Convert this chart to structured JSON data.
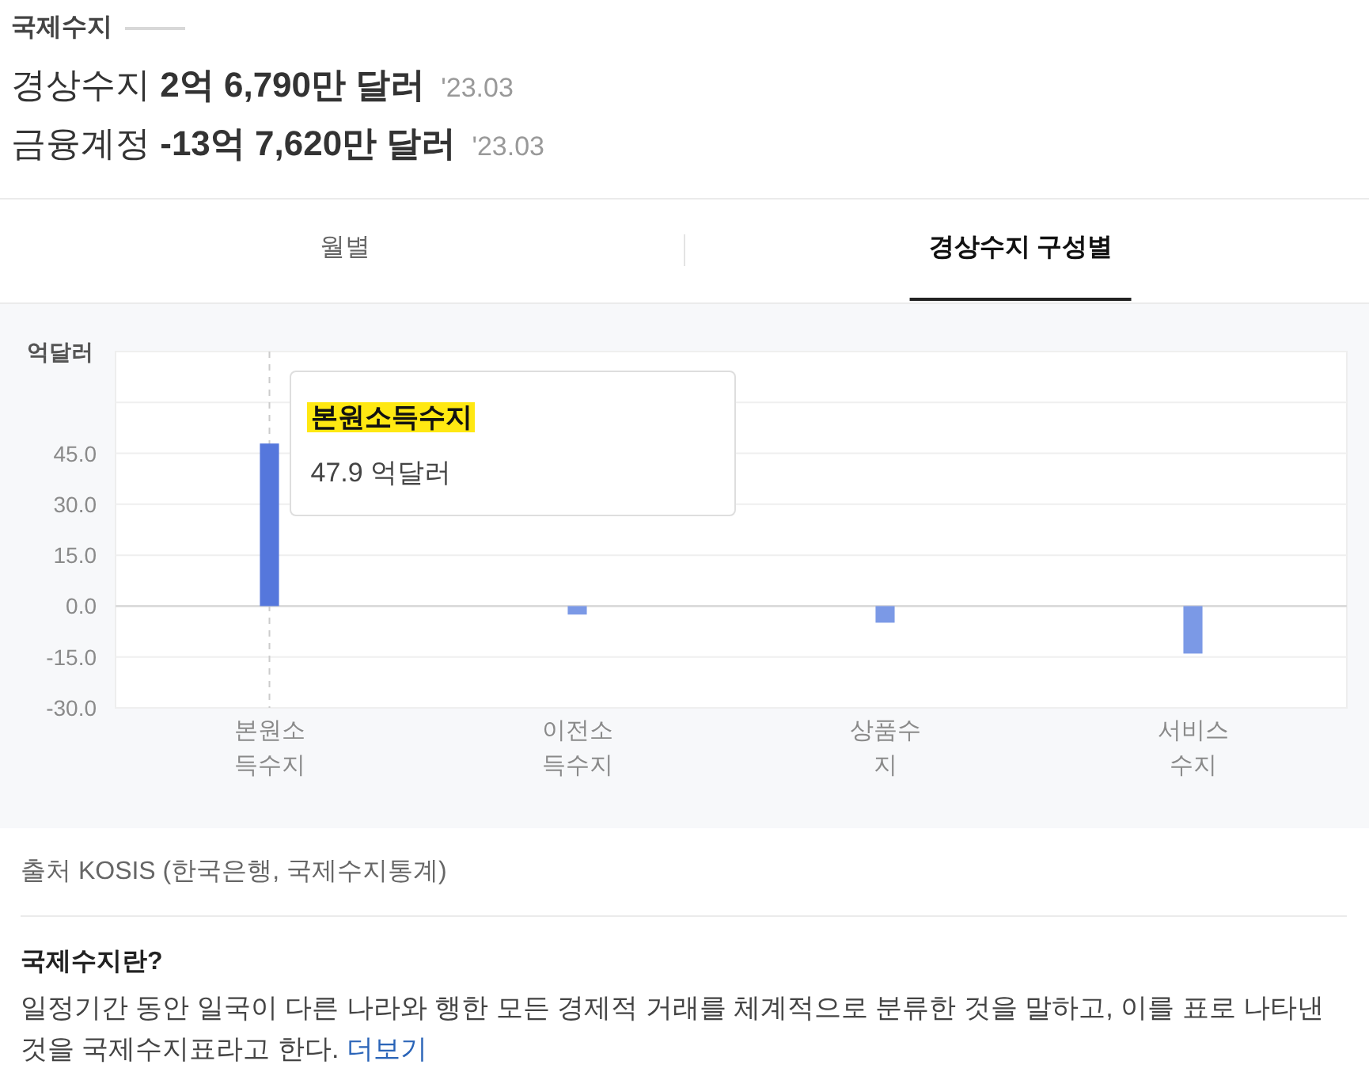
{
  "chart_data": {
    "type": "bar",
    "title": "국제수지",
    "ylabel": "억달러",
    "categories": [
      "본원소득수지",
      "이전소득수지",
      "상품수지",
      "서비스수지"
    ],
    "values": [
      47.9,
      -2.5,
      -4.9,
      -14.0
    ],
    "colors": [
      "#5577dc",
      "#7b99e6",
      "#7b99e6",
      "#7b99e6"
    ],
    "ylim": [
      -30,
      75
    ],
    "yticks": [
      {
        "value": -30,
        "label": "-30.0"
      },
      {
        "value": -15,
        "label": "-15.0"
      },
      {
        "value": 0,
        "label": "0.0"
      },
      {
        "value": 15,
        "label": "15.0"
      },
      {
        "value": 30,
        "label": "30.0"
      },
      {
        "value": 45,
        "label": "45.0"
      },
      {
        "value": 60,
        "label": null
      },
      {
        "value": 75,
        "label": null
      }
    ],
    "grid": "y",
    "ref_lines": [
      {
        "axis": "x",
        "value": "본원소득수지",
        "color": "#cccccc",
        "line_style": "dashed"
      }
    ],
    "annotations": [
      "경상수지 **2억 6,790만 달러**",
      "'23.03",
      "금융계정 **-13억 7,620만 달러**",
      "'23.03",
      "월별",
      "경상수지 구성별",
      "출처 KOSIS (한국은행, 국제수지통계)",
      "국제수지란?",
      "일정기간 동안 일국이 다른 나라와 행한 모든 경제적 거래를 체계적으로 분류한 것을 말하고, 이를 표로 나타낸 것을 국제수지표라고 한다.",
      "더보기",
      {
        "text": "본원소득수지",
        "x": "본원소득수지",
        "y": 47.9
      },
      {
        "text": "47.9 억달러",
        "x": "본원소득수지",
        "y": 47.9
      }
    ]
  }
}
